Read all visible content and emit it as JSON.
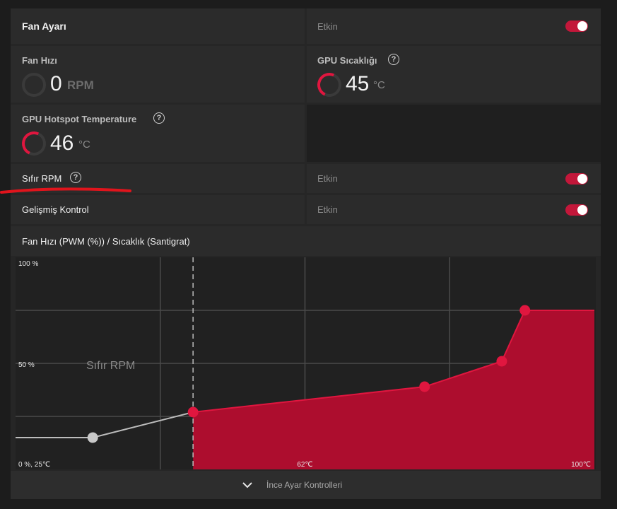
{
  "fan_setting": {
    "title": "Fan Ayarı",
    "status": "Etkin"
  },
  "fan_speed": {
    "label": "Fan Hızı",
    "value": "0",
    "unit": "RPM"
  },
  "gpu_temp": {
    "label": "GPU Sıcaklığı",
    "value": "45",
    "unit": "°C"
  },
  "gpu_hotspot": {
    "label": "GPU Hotspot Temperature",
    "value": "46",
    "unit": "°C"
  },
  "zero_rpm": {
    "label": "Sıfır RPM",
    "status": "Etkin"
  },
  "advanced_control": {
    "label": "Gelişmiş Kontrol",
    "status": "Etkin"
  },
  "help_glyph": "?",
  "chart_header": "Fan Hızı (PWM (%)) / Sıcaklık (Santigrat)",
  "fine_tune": {
    "label": "İnce Ayar Kontrolleri"
  },
  "colors": {
    "accent": "#e0163f",
    "fill": "#ad0d2e"
  },
  "chart_data": {
    "type": "line",
    "ylabel_top": "100 %",
    "ylabel_mid": "50 %",
    "origin_label": "0 %, 25℃",
    "xlabel_mid": "62℃",
    "xlabel_end": "100℃",
    "zero_rpm_text": "Sıfır RPM",
    "xlim": [
      25,
      100
    ],
    "ylim": [
      0,
      100
    ],
    "points": [
      {
        "x": 35,
        "y": 15
      },
      {
        "x": 48,
        "y": 27
      },
      {
        "x": 78,
        "y": 39
      },
      {
        "x": 88,
        "y": 51
      },
      {
        "x": 91,
        "y": 75
      }
    ],
    "zero_rpm_threshold": 48
  }
}
